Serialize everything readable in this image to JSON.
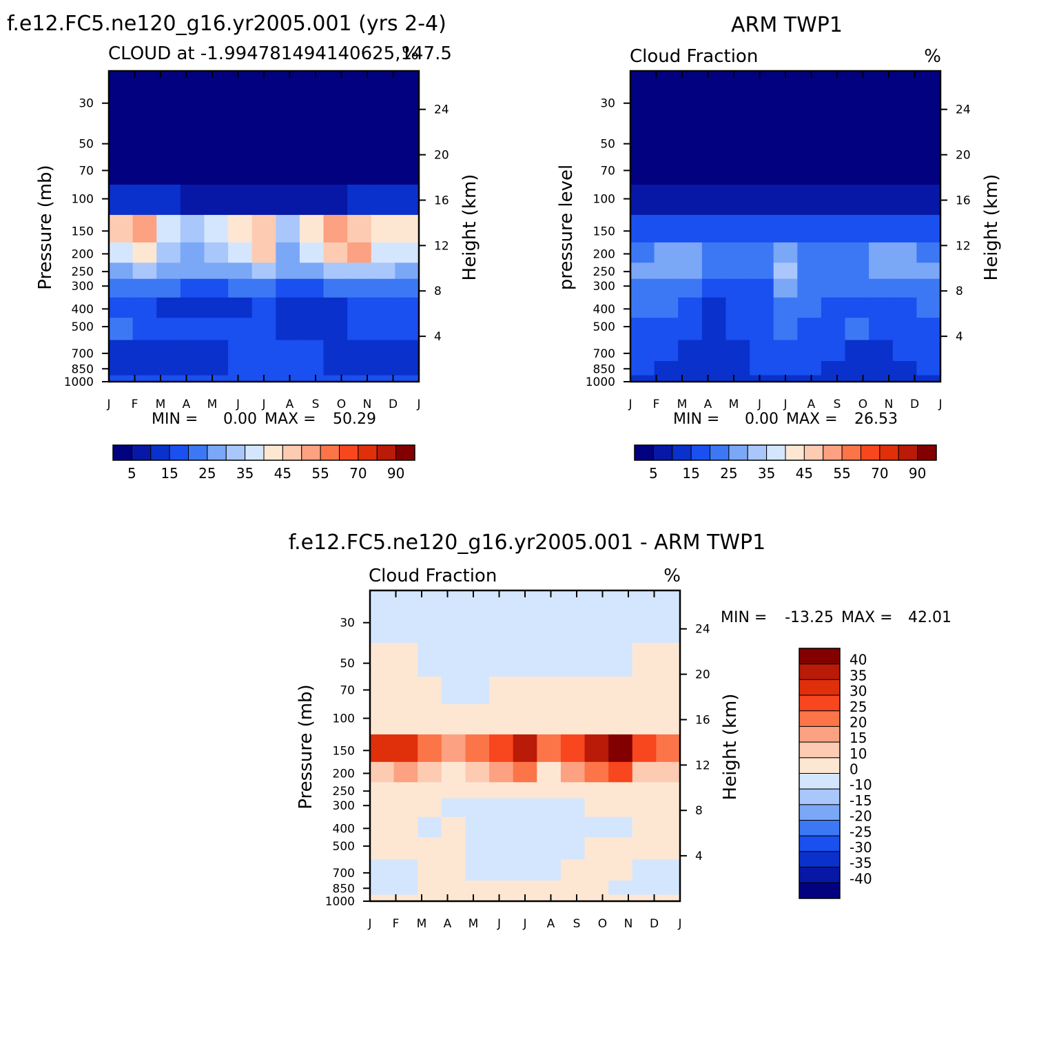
{
  "colors": {
    "seq": [
      "#020180",
      "#0618a5",
      "#0a31cb",
      "#1a4ff0",
      "#3d78f4",
      "#7ba7f7",
      "#a9c7fb",
      "#d4e6fd",
      "#fde7d3",
      "#fdcbb2",
      "#fca181",
      "#fb7548",
      "#f8461e",
      "#e02f0b",
      "#ba1a08",
      "#830000"
    ],
    "diff": [
      "#020180",
      "#0618a5",
      "#0a31cb",
      "#1a4ff0",
      "#3d78f4",
      "#7ba7f7",
      "#a9c7fb",
      "#d4e6fd",
      "#fde7d3",
      "#fdcbb2",
      "#fca181",
      "#fb7548",
      "#f8461e",
      "#e02f0b",
      "#ba1a08",
      "#830000"
    ]
  },
  "chart_data": [
    {
      "type": "heatmap",
      "title": "f.e12.FC5.ne120_g16.yr2005.001 (yrs 2-4)",
      "subtitle_left": "CLOUD at -1.994781494140625,147.5",
      "subtitle_right": "%",
      "ylabel": "Pressure (mb)",
      "y2label": "Height (km)",
      "x_ticks": [
        "J",
        "F",
        "M",
        "A",
        "M",
        "J",
        "J",
        "A",
        "S",
        "O",
        "N",
        "D",
        "J"
      ],
      "y_ticks": [
        "30",
        "50",
        "70",
        "100",
        "150",
        "200",
        "250",
        "300",
        "400",
        "500",
        "700",
        "850",
        "1000"
      ],
      "y2_ticks": [
        "24",
        "20",
        "16",
        "12",
        "8",
        "4"
      ],
      "stats": {
        "min_label": "MIN =",
        "min": "0.00",
        "max_label": "MAX =",
        "max": "50.29"
      },
      "colorbar_labels": [
        "5",
        "15",
        "25",
        "35",
        "45",
        "55",
        "70",
        "90"
      ],
      "grid": false,
      "legend": "bottom colorbar",
      "levels_mb": [
        30,
        50,
        70,
        100,
        150,
        200,
        250,
        300,
        400,
        500,
        700,
        850,
        1000
      ],
      "months": [
        "Jan",
        "Feb",
        "Mar",
        "Apr",
        "May",
        "Jun",
        "Jul",
        "Aug",
        "Sep",
        "Oct",
        "Nov",
        "Dec",
        "Jan"
      ],
      "values_percent": [
        [
          0,
          0,
          0,
          0,
          0,
          0,
          0,
          0,
          0,
          0,
          0,
          0,
          0
        ],
        [
          0,
          0,
          0,
          0,
          0,
          0,
          0,
          0,
          0,
          0,
          0,
          0,
          0
        ],
        [
          0,
          0,
          0,
          0,
          0,
          0,
          0,
          0,
          0,
          0,
          0,
          0,
          0
        ],
        [
          6,
          6,
          6,
          2,
          2,
          3,
          3,
          2,
          2,
          4,
          6,
          6,
          6
        ],
        [
          42,
          45,
          30,
          26,
          30,
          36,
          44,
          28,
          38,
          46,
          44,
          38,
          35
        ],
        [
          34,
          38,
          28,
          24,
          26,
          34,
          40,
          24,
          32,
          40,
          46,
          34,
          30
        ],
        [
          24,
          28,
          22,
          20,
          20,
          24,
          28,
          22,
          22,
          26,
          28,
          26,
          24
        ],
        [
          16,
          18,
          16,
          14,
          14,
          16,
          18,
          14,
          14,
          16,
          18,
          18,
          16
        ],
        [
          12,
          12,
          6,
          6,
          6,
          8,
          12,
          6,
          6,
          6,
          10,
          10,
          12
        ],
        [
          16,
          14,
          10,
          10,
          10,
          10,
          14,
          8,
          8,
          8,
          12,
          14,
          14
        ],
        [
          8,
          8,
          8,
          8,
          8,
          10,
          10,
          10,
          10,
          8,
          8,
          8,
          8
        ],
        [
          8,
          8,
          8,
          8,
          8,
          10,
          10,
          10,
          10,
          8,
          6,
          8,
          8
        ],
        [
          12,
          12,
          14,
          14,
          14,
          14,
          14,
          14,
          14,
          14,
          14,
          14,
          12
        ]
      ]
    },
    {
      "type": "heatmap",
      "title": "ARM TWP1",
      "subtitle_left": "Cloud Fraction",
      "subtitle_right": "%",
      "ylabel": "pressure level",
      "y2label": "Height (km)",
      "x_ticks": [
        "J",
        "F",
        "M",
        "A",
        "M",
        "J",
        "J",
        "A",
        "S",
        "O",
        "N",
        "D",
        "J"
      ],
      "y_ticks": [
        "30",
        "50",
        "70",
        "100",
        "150",
        "200",
        "250",
        "300",
        "400",
        "500",
        "700",
        "850",
        "1000"
      ],
      "y2_ticks": [
        "24",
        "20",
        "16",
        "12",
        "8",
        "4"
      ],
      "stats": {
        "min_label": "MIN =",
        "min": "0.00",
        "max_label": "MAX =",
        "max": "26.53"
      },
      "colorbar_labels": [
        "5",
        "15",
        "25",
        "35",
        "45",
        "55",
        "70",
        "90"
      ],
      "grid": false,
      "legend": "bottom colorbar",
      "levels_mb": [
        30,
        50,
        70,
        100,
        150,
        200,
        250,
        300,
        400,
        500,
        700,
        850,
        1000
      ],
      "months": [
        "Jan",
        "Feb",
        "Mar",
        "Apr",
        "May",
        "Jun",
        "Jul",
        "Aug",
        "Sep",
        "Oct",
        "Nov",
        "Dec",
        "Jan"
      ],
      "values_percent": [
        [
          0,
          0,
          0,
          0,
          0,
          0,
          0,
          0,
          0,
          0,
          0,
          0,
          0
        ],
        [
          0,
          0,
          0,
          0,
          0,
          0,
          0,
          0,
          0,
          0,
          0,
          0,
          0
        ],
        [
          0,
          0,
          0,
          0,
          0,
          0,
          0,
          0,
          0,
          0,
          0,
          0,
          0
        ],
        [
          4,
          4,
          4,
          2,
          2,
          2,
          2,
          2,
          2,
          2,
          2,
          4,
          4
        ],
        [
          12,
          12,
          12,
          12,
          12,
          10,
          10,
          10,
          12,
          12,
          12,
          12,
          12
        ],
        [
          18,
          22,
          20,
          16,
          16,
          18,
          22,
          18,
          18,
          18,
          20,
          20,
          18
        ],
        [
          20,
          24,
          22,
          18,
          18,
          18,
          26,
          18,
          18,
          18,
          22,
          24,
          20
        ],
        [
          16,
          18,
          16,
          14,
          12,
          14,
          22,
          16,
          16,
          16,
          18,
          18,
          16
        ],
        [
          16,
          16,
          14,
          8,
          12,
          14,
          18,
          16,
          14,
          14,
          14,
          14,
          16
        ],
        [
          14,
          14,
          12,
          8,
          10,
          14,
          18,
          14,
          14,
          16,
          14,
          14,
          14
        ],
        [
          10,
          10,
          8,
          6,
          8,
          12,
          14,
          12,
          10,
          8,
          8,
          10,
          10
        ],
        [
          10,
          8,
          6,
          6,
          8,
          10,
          12,
          10,
          8,
          6,
          6,
          8,
          10
        ],
        [
          6,
          6,
          6,
          6,
          6,
          6,
          6,
          6,
          6,
          6,
          6,
          6,
          6
        ]
      ]
    },
    {
      "type": "heatmap",
      "title": "f.e12.FC5.ne120_g16.yr2005.001 - ARM TWP1",
      "subtitle_left": "Cloud Fraction",
      "subtitle_right": "%",
      "ylabel": "Pressure (mb)",
      "y2label": "Height (km)",
      "x_ticks": [
        "J",
        "F",
        "M",
        "A",
        "M",
        "J",
        "J",
        "A",
        "S",
        "O",
        "N",
        "D",
        "J"
      ],
      "y_ticks": [
        "30",
        "50",
        "70",
        "100",
        "150",
        "200",
        "250",
        "300",
        "400",
        "500",
        "700",
        "850",
        "1000"
      ],
      "y2_ticks": [
        "24",
        "20",
        "16",
        "12",
        "8",
        "4"
      ],
      "stats": {
        "min_label": "MIN =",
        "min": "-13.25",
        "max_label": "MAX =",
        "max": "42.01"
      },
      "colorbar_labels": [
        "40",
        "35",
        "30",
        "25",
        "20",
        "15",
        "10",
        "0",
        "-10",
        "-15",
        "-20",
        "-25",
        "-30",
        "-35",
        "-40"
      ],
      "grid": false,
      "legend": "right colorbar",
      "levels_mb": [
        30,
        50,
        70,
        100,
        150,
        200,
        250,
        300,
        400,
        500,
        700,
        850,
        1000
      ],
      "months": [
        "Jan",
        "Feb",
        "Mar",
        "Apr",
        "May",
        "Jun",
        "Jul",
        "Aug",
        "Sep",
        "Oct",
        "Nov",
        "Dec",
        "Jan"
      ],
      "values_percent": [
        [
          -1,
          -1,
          -1,
          -1,
          -1,
          -1,
          -1,
          -1,
          -1,
          -1,
          -1,
          -1,
          -1
        ],
        [
          2,
          2,
          -1,
          -1,
          -1,
          -1,
          -1,
          -1,
          -1,
          -1,
          -1,
          2,
          2
        ],
        [
          2,
          2,
          2,
          -1,
          -1,
          2,
          2,
          2,
          2,
          2,
          2,
          2,
          2
        ],
        [
          4,
          4,
          4,
          2,
          2,
          2,
          2,
          2,
          2,
          2,
          4,
          4,
          4
        ],
        [
          32,
          34,
          22,
          16,
          20,
          28,
          38,
          20,
          28,
          36,
          40,
          28,
          24
        ],
        [
          14,
          18,
          10,
          8,
          10,
          16,
          20,
          6,
          16,
          20,
          26,
          14,
          12
        ],
        [
          4,
          4,
          2,
          2,
          2,
          6,
          4,
          4,
          4,
          8,
          6,
          4,
          4
        ],
        [
          1,
          1,
          1,
          -1,
          -1,
          -1,
          -1,
          -1,
          -1,
          1,
          1,
          1,
          1
        ],
        [
          1,
          1,
          -1,
          1,
          -1,
          -1,
          -6,
          -1,
          -1,
          -1,
          -1,
          1,
          1
        ],
        [
          1,
          1,
          1,
          1,
          -1,
          -1,
          -6,
          -1,
          -1,
          1,
          1,
          1,
          1
        ],
        [
          -1,
          -1,
          1,
          1,
          -1,
          -1,
          -1,
          -1,
          1,
          1,
          1,
          -1,
          -1
        ],
        [
          -1,
          -1,
          1,
          1,
          1,
          1,
          1,
          1,
          1,
          1,
          -1,
          -1,
          -1
        ],
        [
          2,
          2,
          2,
          2,
          2,
          2,
          4,
          4,
          2,
          2,
          2,
          2,
          2
        ]
      ]
    }
  ]
}
